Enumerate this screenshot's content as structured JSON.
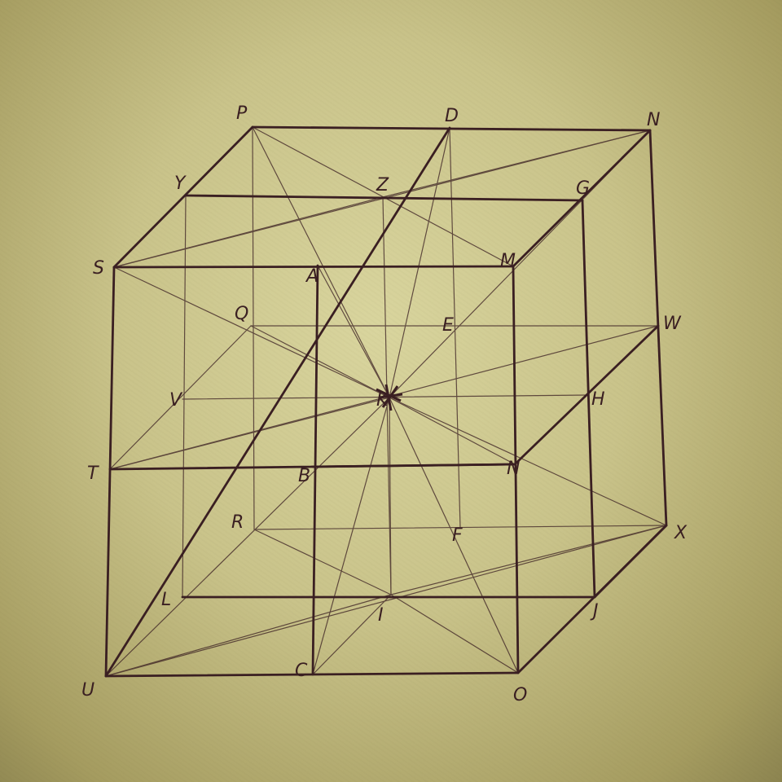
{
  "drawing": {
    "ink_color": "#3a1f22",
    "paper_color": "#cfc993",
    "points": [
      {
        "id": "P",
        "label": "P"
      },
      {
        "id": "D",
        "label": "D"
      },
      {
        "id": "N",
        "label": "N"
      },
      {
        "id": "Y",
        "label": "Y"
      },
      {
        "id": "Z",
        "label": "Z"
      },
      {
        "id": "G",
        "label": "G"
      },
      {
        "id": "S",
        "label": "S"
      },
      {
        "id": "A",
        "label": "A"
      },
      {
        "id": "M",
        "label": "M"
      },
      {
        "id": "Q",
        "label": "Q"
      },
      {
        "id": "E",
        "label": "E"
      },
      {
        "id": "W",
        "label": "W"
      },
      {
        "id": "V",
        "label": "V"
      },
      {
        "id": "K",
        "label": "K"
      },
      {
        "id": "H",
        "label": "H"
      },
      {
        "id": "T",
        "label": "T"
      },
      {
        "id": "B",
        "label": "B"
      },
      {
        "id": "N2",
        "label": "N"
      },
      {
        "id": "R",
        "label": "R"
      },
      {
        "id": "F",
        "label": "F"
      },
      {
        "id": "X",
        "label": "X"
      },
      {
        "id": "L",
        "label": "L"
      },
      {
        "id": "I",
        "label": "I"
      },
      {
        "id": "J",
        "label": "J"
      },
      {
        "id": "U",
        "label": "U"
      },
      {
        "id": "C",
        "label": "C"
      },
      {
        "id": "O",
        "label": "O"
      }
    ],
    "heavy_edges": [
      [
        "P",
        "N"
      ],
      [
        "S",
        "M"
      ],
      [
        "T",
        "N2"
      ],
      [
        "U",
        "O"
      ],
      [
        "S",
        "U"
      ],
      [
        "M",
        "O"
      ],
      [
        "N",
        "X"
      ],
      [
        "P",
        "S"
      ],
      [
        "N",
        "M"
      ],
      [
        "X",
        "O"
      ],
      [
        "Y",
        "G"
      ],
      [
        "D",
        "U"
      ],
      [
        "A",
        "C"
      ],
      [
        "B",
        "N2"
      ],
      [
        "G",
        "J"
      ],
      [
        "W",
        "N2"
      ],
      [
        "X",
        "J"
      ],
      [
        "L",
        "J"
      ]
    ],
    "light_edges": [
      [
        "P",
        "R"
      ],
      [
        "Z",
        "I"
      ],
      [
        "D",
        "F"
      ],
      [
        "Y",
        "L"
      ],
      [
        "Q",
        "W"
      ],
      [
        "V",
        "H"
      ],
      [
        "R",
        "X"
      ],
      [
        "S",
        "N"
      ],
      [
        "S",
        "Z"
      ],
      [
        "Z",
        "N"
      ],
      [
        "P",
        "M"
      ],
      [
        "P",
        "K"
      ],
      [
        "D",
        "K"
      ],
      [
        "N",
        "K"
      ],
      [
        "S",
        "K"
      ],
      [
        "Q",
        "K"
      ],
      [
        "T",
        "K"
      ],
      [
        "T",
        "W"
      ],
      [
        "Q",
        "T"
      ],
      [
        "K",
        "X"
      ],
      [
        "K",
        "O"
      ],
      [
        "K",
        "C"
      ],
      [
        "K",
        "U"
      ],
      [
        "K",
        "I"
      ],
      [
        "K",
        "A"
      ],
      [
        "K",
        "N2"
      ],
      [
        "U",
        "I"
      ],
      [
        "I",
        "X"
      ],
      [
        "R",
        "I"
      ],
      [
        "C",
        "I"
      ],
      [
        "I",
        "O"
      ],
      [
        "U",
        "X"
      ]
    ]
  }
}
